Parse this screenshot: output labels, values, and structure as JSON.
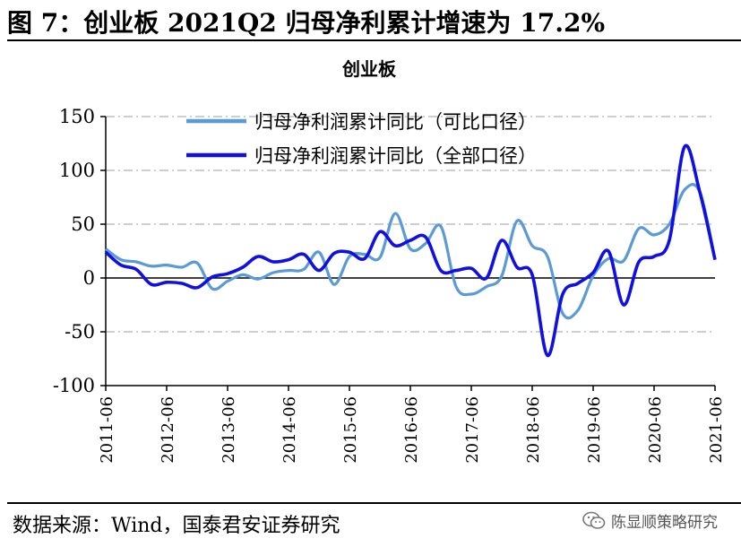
{
  "header": {
    "figure_title": "图 7：创业板 2021Q2 归母净利累计增速为 17.2%"
  },
  "footer": {
    "source": "数据来源：Wind，国泰君安证券研究",
    "watermark": "陈显顺策略研究"
  },
  "chart_data": {
    "type": "line",
    "title": "创业板",
    "xlabel": "",
    "ylabel": "",
    "ylim": [
      -100,
      150
    ],
    "yticks": [
      -100,
      -50,
      0,
      50,
      100,
      150
    ],
    "grid": true,
    "legend_position": "top",
    "x_ticks": [
      "2011-06",
      "2012-06",
      "2013-06",
      "2014-06",
      "2015-06",
      "2016-06",
      "2017-06",
      "2018-06",
      "2019-06",
      "2020-06",
      "2021-06"
    ],
    "x": [
      "2011-06",
      "2011-09",
      "2011-12",
      "2012-03",
      "2012-06",
      "2012-09",
      "2012-12",
      "2013-03",
      "2013-06",
      "2013-09",
      "2013-12",
      "2014-03",
      "2014-06",
      "2014-09",
      "2014-12",
      "2015-03",
      "2015-06",
      "2015-09",
      "2015-12",
      "2016-03",
      "2016-06",
      "2016-09",
      "2016-12",
      "2017-03",
      "2017-06",
      "2017-09",
      "2017-12",
      "2018-03",
      "2018-06",
      "2018-09",
      "2018-12",
      "2019-03",
      "2019-06",
      "2019-09",
      "2019-12",
      "2020-03",
      "2020-06",
      "2020-09",
      "2020-12",
      "2021-03",
      "2021-06"
    ],
    "series": [
      {
        "name": "归母净利润累计同比（可比口径）",
        "color": "#5b9bd5",
        "values": [
          27,
          17,
          15,
          11,
          12,
          10,
          14,
          -10,
          -3,
          3,
          -1,
          5,
          7,
          8,
          24,
          -6,
          20,
          22,
          19,
          60,
          27,
          32,
          48,
          -8,
          -15,
          -8,
          2,
          53,
          30,
          20,
          -33,
          -30,
          2,
          18,
          16,
          46,
          40,
          50,
          82,
          80,
          17
        ]
      },
      {
        "name": "归母净利润累计同比（全部口径）",
        "color": "#1010e0",
        "values": [
          24,
          12,
          8,
          -6,
          -4,
          -5,
          -9,
          1,
          4,
          10,
          20,
          15,
          17,
          22,
          7,
          23,
          24,
          18,
          43,
          30,
          35,
          38,
          7,
          7,
          9,
          0,
          35,
          10,
          3,
          -72,
          -15,
          -5,
          5,
          25,
          -25,
          15,
          20,
          35,
          122,
          80,
          17
        ]
      }
    ]
  }
}
